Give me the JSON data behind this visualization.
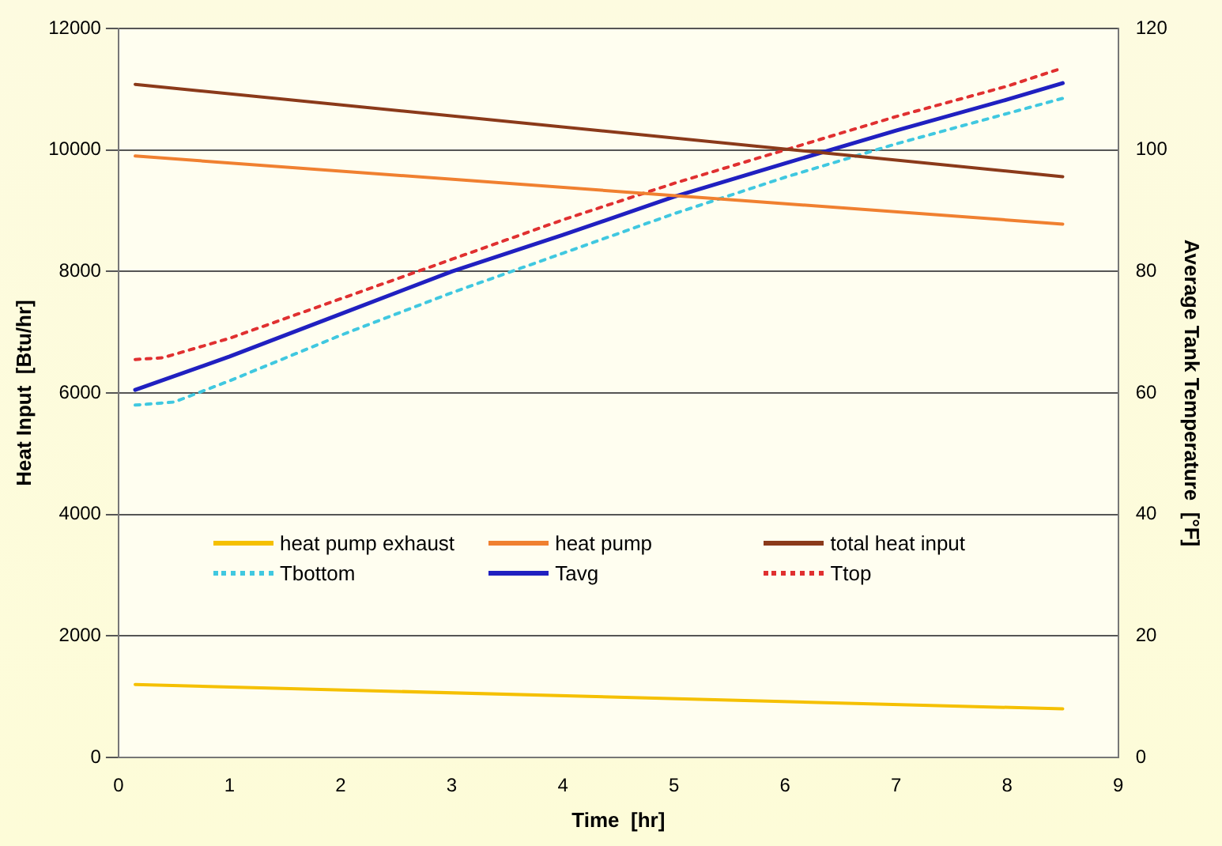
{
  "chart_data": {
    "type": "line",
    "xlabel": "Time  [hr]",
    "ylabel": "Heat Input  [Btu/hr]",
    "y2label": "Average Tank Temperature  [°F]",
    "xlim": [
      0,
      9
    ],
    "xticks": [
      0,
      1,
      2,
      3,
      4,
      5,
      6,
      7,
      8,
      9
    ],
    "ylim": [
      0,
      12000
    ],
    "yticks": [
      0,
      2000,
      4000,
      6000,
      8000,
      10000,
      12000
    ],
    "y2lim": [
      0,
      120
    ],
    "y2ticks": [
      0,
      20,
      40,
      60,
      80,
      100,
      120
    ],
    "grid": "y",
    "legend": "bottom",
    "marker": "none",
    "series": [
      {
        "name": "heat pump exhaust",
        "color": "#f5c000",
        "line_style": "solid",
        "x": [
          0.15,
          8.5
        ],
        "values": [
          1200,
          800
        ]
      },
      {
        "name": "heat pump",
        "color": "#f08030",
        "line_style": "solid",
        "x": [
          0.15,
          8.5
        ],
        "values": [
          9900,
          8780
        ]
      },
      {
        "name": "total heat input",
        "color": "#8b3a1a",
        "line_style": "solid",
        "x": [
          0.15,
          8.5
        ],
        "values": [
          11080,
          9560
        ]
      },
      {
        "name": "Tbottom",
        "color": "#40c8e0",
        "line_style": "dotted",
        "axis": "y2",
        "x": [
          0.15,
          0.5,
          1,
          2,
          3,
          4,
          5,
          6,
          7,
          8,
          8.5
        ],
        "values": [
          58,
          58.5,
          62,
          69.5,
          76.5,
          83,
          89.5,
          95.5,
          101,
          106,
          108.5
        ]
      },
      {
        "name": "Tavg",
        "color": "#2020c0",
        "line_style": "solid",
        "axis": "y2",
        "x": [
          0.15,
          1,
          2,
          3,
          4,
          5,
          6,
          7,
          8,
          8.5
        ],
        "values": [
          60.5,
          66,
          73,
          80,
          86,
          92.3,
          97.8,
          103.2,
          108.3,
          111
        ]
      },
      {
        "name": "Ttop",
        "color": "#e03030",
        "line_style": "dotted",
        "axis": "y2",
        "x": [
          0.15,
          0.4,
          1,
          2,
          3,
          4,
          5,
          6,
          7,
          8,
          8.5
        ],
        "values": [
          65.5,
          65.8,
          69,
          75.5,
          82,
          88.5,
          94.5,
          100,
          105.5,
          110.5,
          113.5
        ]
      }
    ]
  }
}
